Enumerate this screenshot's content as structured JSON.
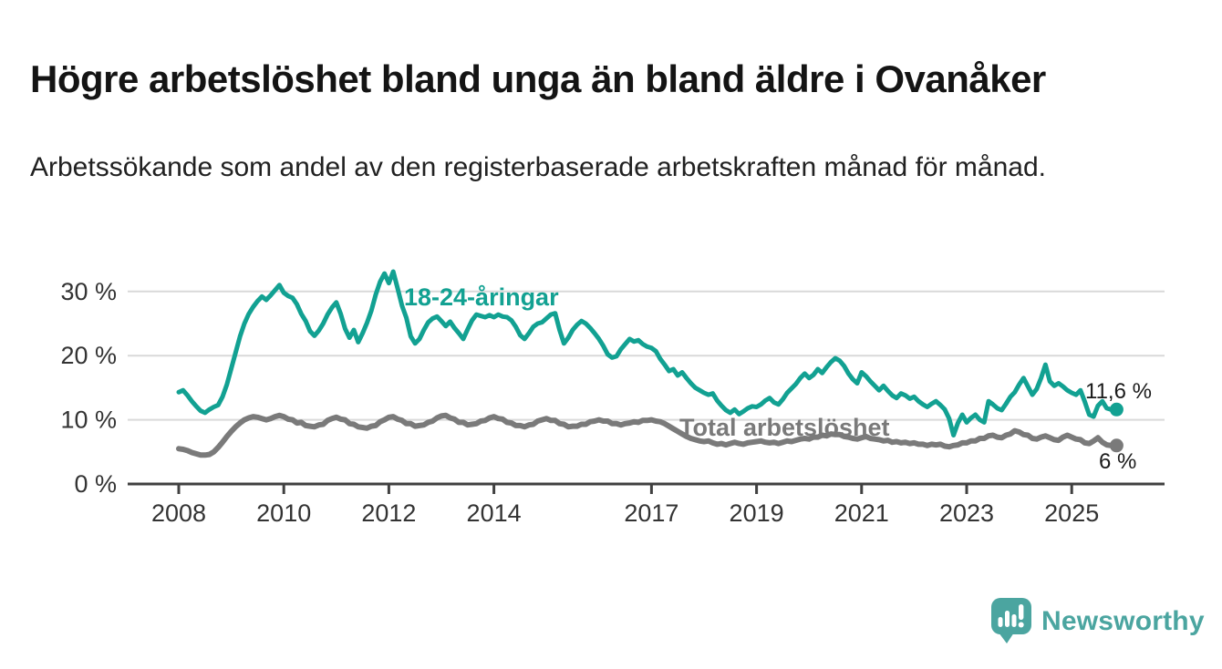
{
  "header": {
    "title": "Högre arbetslöshet bland unga än bland äldre i Ovanåker",
    "subtitle": "Arbetssökande som andel av den registerbaserade arbetskraften månad för månad."
  },
  "chart_data": {
    "type": "line",
    "unit": "%",
    "x_start": "2008-01",
    "x_end": "2025-10",
    "x_interval": "month",
    "x_ticks": [
      2008,
      2010,
      2012,
      2014,
      2017,
      2019,
      2021,
      2023,
      2025
    ],
    "y_ticks": [
      0,
      10,
      20,
      30
    ],
    "y_tick_labels": [
      "0 %",
      "10 %",
      "20 %",
      "30 %"
    ],
    "ylim": [
      0,
      34
    ],
    "grid": "horizontal",
    "legend_position": "inline-labels",
    "series": [
      {
        "name": "18-24-åringar",
        "color": "#12A192",
        "end_label": "11,6 %",
        "end_value": 11.6,
        "values": [
          14.3,
          14.6,
          13.8,
          12.9,
          12.1,
          11.4,
          11.1,
          11.6,
          12.0,
          12.3,
          13.6,
          15.5,
          18.0,
          20.5,
          23.0,
          25.0,
          26.5,
          27.6,
          28.5,
          29.2,
          28.7,
          29.4,
          30.2,
          31.0,
          29.8,
          29.3,
          29.0,
          28.0,
          26.5,
          25.4,
          23.8,
          23.1,
          23.9,
          25.0,
          26.4,
          27.5,
          28.3,
          26.5,
          24.2,
          22.8,
          24.0,
          22.1,
          23.5,
          25.1,
          27.0,
          29.5,
          31.5,
          32.8,
          31.3,
          33.1,
          30.5,
          27.8,
          25.9,
          23.0,
          21.9,
          22.6,
          24.0,
          25.2,
          25.8,
          26.1,
          25.4,
          24.6,
          25.3,
          24.3,
          23.5,
          22.6,
          24.1,
          25.5,
          26.4,
          26.2,
          26.0,
          26.3,
          26.0,
          26.4,
          26.1,
          26.0,
          25.5,
          24.5,
          23.2,
          22.6,
          23.5,
          24.5,
          25.0,
          25.2,
          25.8,
          26.4,
          26.6,
          24.0,
          21.9,
          22.8,
          24.0,
          24.8,
          25.4,
          25.0,
          24.3,
          23.5,
          22.6,
          21.5,
          20.2,
          19.7,
          19.9,
          21.0,
          21.8,
          22.6,
          22.2,
          22.4,
          21.8,
          21.4,
          21.2,
          20.7,
          19.5,
          18.6,
          17.6,
          17.9,
          16.9,
          17.4,
          16.5,
          15.7,
          15.0,
          14.6,
          14.2,
          13.9,
          14.1,
          13.0,
          12.2,
          11.5,
          11.1,
          11.6,
          10.9,
          11.3,
          11.8,
          12.1,
          12.0,
          12.4,
          13.0,
          13.4,
          12.7,
          12.4,
          13.2,
          14.2,
          14.9,
          15.6,
          16.5,
          17.2,
          16.5,
          17.0,
          17.9,
          17.3,
          18.2,
          19.0,
          19.6,
          19.2,
          18.4,
          17.2,
          16.3,
          15.7,
          17.4,
          16.8,
          16.0,
          15.3,
          14.6,
          15.3,
          14.5,
          13.8,
          13.4,
          14.1,
          13.8,
          13.3,
          13.6,
          12.9,
          12.4,
          12.0,
          12.5,
          12.9,
          12.3,
          11.6,
          10.2,
          7.6,
          9.5,
          10.8,
          9.6,
          10.3,
          10.8,
          10.0,
          9.6,
          12.9,
          12.4,
          11.8,
          11.5,
          12.5,
          13.6,
          14.3,
          15.5,
          16.5,
          15.2,
          13.9,
          14.8,
          16.5,
          18.6,
          16.0,
          15.3,
          15.7,
          15.2,
          14.6,
          14.2,
          13.9,
          14.6,
          12.8,
          10.8,
          10.5,
          12.2,
          12.9,
          11.8,
          11.6
        ]
      },
      {
        "name": "Total arbetslöshet",
        "color": "#7A7A7A",
        "end_label": "6 %",
        "end_value": 6.0,
        "values": [
          5.5,
          5.4,
          5.2,
          4.9,
          4.7,
          4.5,
          4.5,
          4.6,
          5.0,
          5.7,
          6.5,
          7.4,
          8.2,
          8.9,
          9.5,
          10.0,
          10.3,
          10.5,
          10.4,
          10.2,
          10.0,
          10.2,
          10.5,
          10.7,
          10.5,
          10.1,
          10.0,
          9.5,
          9.6,
          9.1,
          9.0,
          8.9,
          9.2,
          9.3,
          9.9,
          10.2,
          10.4,
          10.1,
          10.0,
          9.4,
          9.3,
          8.9,
          8.8,
          8.7,
          9.0,
          9.1,
          9.7,
          10.0,
          10.4,
          10.5,
          10.1,
          9.9,
          9.4,
          9.4,
          9.0,
          9.1,
          9.2,
          9.6,
          9.8,
          10.3,
          10.6,
          10.7,
          10.3,
          10.1,
          9.6,
          9.6,
          9.2,
          9.3,
          9.4,
          9.8,
          9.9,
          10.3,
          10.5,
          10.2,
          10.1,
          9.6,
          9.5,
          9.1,
          9.1,
          8.9,
          9.2,
          9.3,
          9.8,
          10.0,
          10.2,
          9.9,
          9.9,
          9.4,
          9.3,
          8.9,
          9.0,
          9.0,
          9.3,
          9.3,
          9.7,
          9.8,
          10.0,
          9.8,
          9.8,
          9.4,
          9.4,
          9.2,
          9.4,
          9.5,
          9.7,
          9.6,
          9.9,
          9.9,
          10.0,
          9.8,
          9.7,
          9.4,
          9.0,
          8.6,
          8.2,
          7.8,
          7.4,
          7.1,
          6.9,
          6.7,
          6.6,
          6.7,
          6.4,
          6.2,
          6.3,
          6.1,
          6.3,
          6.5,
          6.3,
          6.2,
          6.4,
          6.5,
          6.6,
          6.7,
          6.5,
          6.4,
          6.5,
          6.3,
          6.5,
          6.7,
          6.6,
          6.8,
          7.0,
          7.1,
          7.0,
          7.3,
          7.3,
          7.6,
          7.5,
          7.8,
          7.7,
          7.7,
          7.4,
          7.3,
          7.1,
          7.0,
          7.2,
          7.4,
          7.1,
          7.0,
          6.9,
          6.7,
          6.8,
          6.5,
          6.6,
          6.4,
          6.5,
          6.3,
          6.4,
          6.2,
          6.2,
          6.0,
          6.2,
          6.1,
          6.2,
          5.9,
          5.8,
          6.0,
          6.1,
          6.4,
          6.4,
          6.7,
          6.7,
          7.1,
          7.1,
          7.5,
          7.6,
          7.3,
          7.2,
          7.6,
          7.8,
          8.3,
          8.1,
          7.7,
          7.6,
          7.1,
          7.0,
          7.3,
          7.5,
          7.2,
          6.9,
          6.8,
          7.3,
          7.6,
          7.3,
          7.0,
          6.9,
          6.4,
          6.3,
          6.7,
          7.2,
          6.5,
          6.1,
          6.0
        ]
      }
    ]
  },
  "footer": {
    "brand": "Newsworthy",
    "brand_color": "#4BA5A0",
    "logo_icon": "bar-chart-speech-bubble"
  }
}
